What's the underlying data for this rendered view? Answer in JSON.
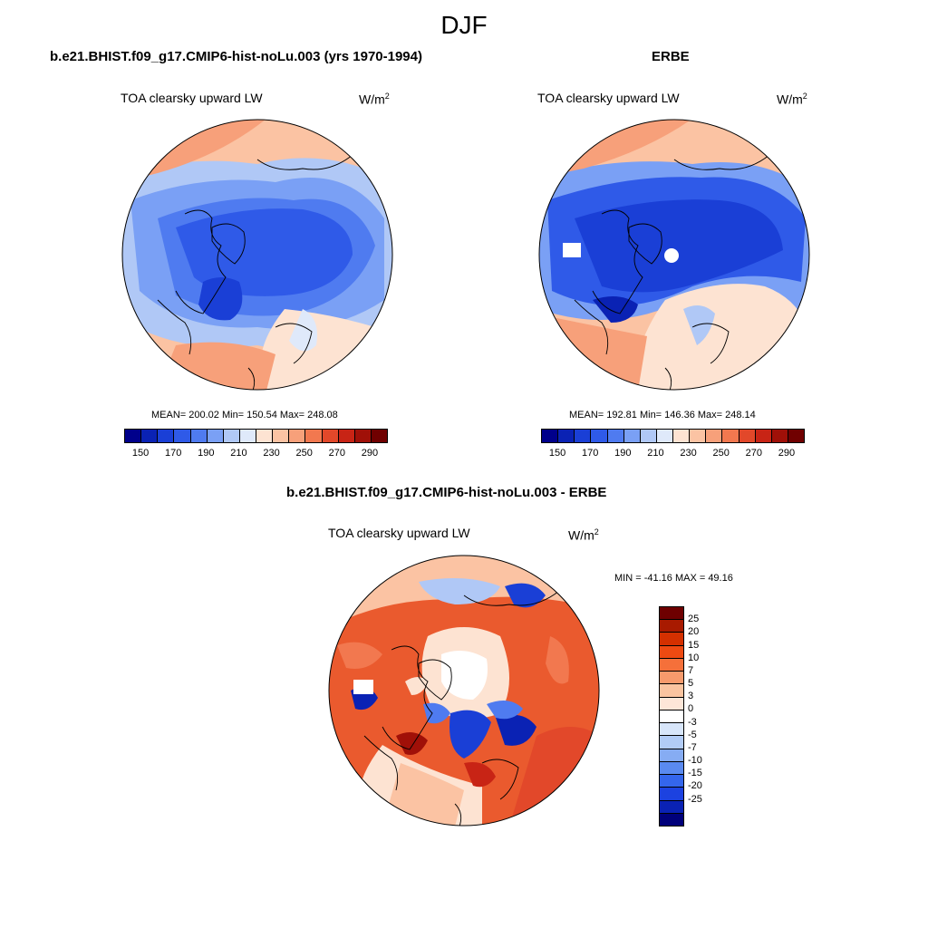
{
  "figure": {
    "season": "DJF"
  },
  "panels": [
    {
      "title": "b.e21.BHIST.f09_g17.CMIP6-hist-noLu.003 (yrs 1970-1994)",
      "variable": "TOA clearsky upward LW",
      "units_base": "W/m",
      "units_sup": "2",
      "stats": "MEAN= 200.02  Min= 150.54  Max= 248.08"
    },
    {
      "title": "ERBE",
      "variable": "TOA clearsky upward LW",
      "units_base": "W/m",
      "units_sup": "2",
      "stats": "MEAN= 192.81  Min= 146.36  Max= 248.14"
    },
    {
      "title": "b.e21.BHIST.f09_g17.CMIP6-hist-noLu.003 - ERBE",
      "variable": "TOA clearsky upward LW",
      "units_base": "W/m",
      "units_sup": "2",
      "stats": "MIN = -41.16 MAX =  49.16"
    }
  ],
  "colorbars": {
    "absolute": {
      "colors": [
        "#00008b",
        "#0a22b4",
        "#1a3fd6",
        "#2f5ae8",
        "#4f7bf0",
        "#7aa0f5",
        "#b0c8f6",
        "#dfe9fa",
        "#fde3d2",
        "#fbc3a3",
        "#f7a07a",
        "#f2784f",
        "#e2482a",
        "#c82415",
        "#a01008",
        "#700000"
      ],
      "tick_labels": [
        "150",
        "170",
        "190",
        "210",
        "230",
        "250",
        "270",
        "290"
      ]
    },
    "difference": {
      "colors": [
        "#6e0000",
        "#a81a00",
        "#d43000",
        "#ee4a12",
        "#f5703a",
        "#f79a6c",
        "#fac4a0",
        "#fde6d8",
        "#ffffff",
        "#d8e6fa",
        "#b2ccf6",
        "#86acf3",
        "#5a8af0",
        "#3466ec",
        "#1c42e0",
        "#0a22b4",
        "#00007a"
      ],
      "tick_labels": [
        "25",
        "20",
        "15",
        "10",
        "7",
        "5",
        "3",
        "0",
        "-3",
        "-5",
        "-7",
        "-10",
        "-15",
        "-20",
        "-25"
      ]
    }
  },
  "map_colors": {
    "deep_blue": "#1f4ee0",
    "mid_blue": "#3a6ae8",
    "light_blue": "#9cb9f3",
    "pale_blue": "#cddcf7",
    "pale_orange": "#fde3d2",
    "orange": "#f5a07c",
    "red_orange": "#ea5a2e",
    "dark_blue": "#0a1fb0"
  }
}
